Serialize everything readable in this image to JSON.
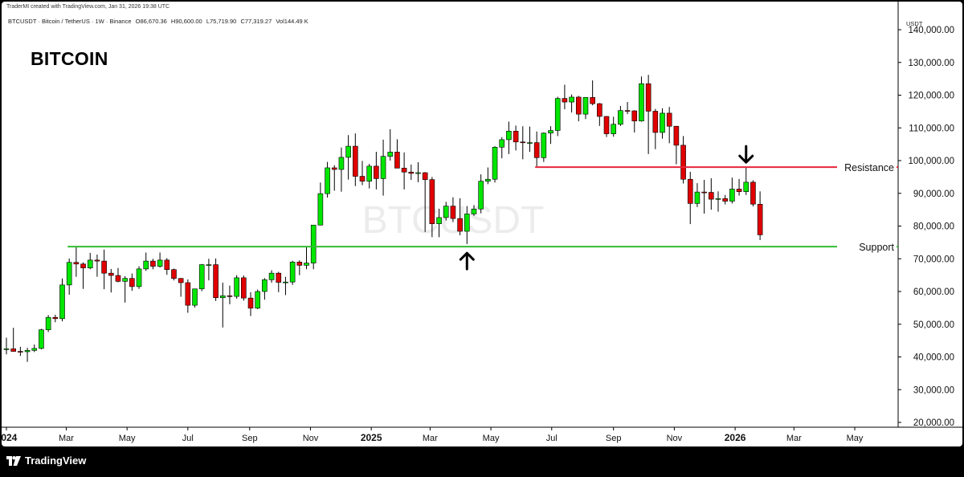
{
  "header": {
    "credit": "TraderMI created with TradingView.com, Jan 31, 2026 19:38 UTC",
    "symbol_line": "BTCUSDT · Bitcoin / TetherUS · 1W · Binance",
    "ohlc": {
      "o": "O86,670.36",
      "h": "H90,600.00",
      "l": "L75,719.90",
      "c": "C77,319.27",
      "vol": "Vol144.49 K"
    }
  },
  "title": "BITCOIN",
  "watermark": "BTCUSDT",
  "footer": {
    "brand": "TradingView",
    "logo_icon": "tradingview-logo-icon"
  },
  "colors": {
    "up": "#00e600",
    "down": "#e00000",
    "support": "#33bb33",
    "resistance": "#e8263a",
    "arrow": "#000000"
  },
  "chart_data": {
    "type": "candlestick",
    "unit": "USDT",
    "ylim": [
      20000,
      140000
    ],
    "y_ticks": [
      "140,000.00",
      "130,000.00",
      "120,000.00",
      "110,000.00",
      "100,000.00",
      "90,000.00",
      "80,000.00",
      "70,000.00",
      "60,000.00",
      "50,000.00",
      "40,000.00",
      "30,000.00",
      "20,000.00"
    ],
    "x_ticks": [
      {
        "label": "2024",
        "date": "2024-01-01"
      },
      {
        "label": "Mar",
        "date": "2024-03-01"
      },
      {
        "label": "May",
        "date": "2024-05-01"
      },
      {
        "label": "Jul",
        "date": "2024-07-01"
      },
      {
        "label": "Sep",
        "date": "2024-09-01"
      },
      {
        "label": "Nov",
        "date": "2024-11-01"
      },
      {
        "label": "2025",
        "date": "2025-01-01"
      },
      {
        "label": "Mar",
        "date": "2025-03-01"
      },
      {
        "label": "May",
        "date": "2025-05-01"
      },
      {
        "label": "Jul",
        "date": "2025-07-01"
      },
      {
        "label": "Sep",
        "date": "2025-09-01"
      },
      {
        "label": "Nov",
        "date": "2025-11-01"
      },
      {
        "label": "2026",
        "date": "2026-01-01"
      },
      {
        "label": "Mar",
        "date": "2026-03-01"
      },
      {
        "label": "May",
        "date": "2026-05-01"
      }
    ],
    "candles": [
      {
        "d": "2024-01-01",
        "o": 42300,
        "h": 45900,
        "l": 40800,
        "c": 42500
      },
      {
        "d": "2024-01-08",
        "o": 42500,
        "h": 48900,
        "l": 41600,
        "c": 41700
      },
      {
        "d": "2024-01-15",
        "o": 41700,
        "h": 43100,
        "l": 40300,
        "c": 41600
      },
      {
        "d": "2024-01-22",
        "o": 41600,
        "h": 42800,
        "l": 38500,
        "c": 42000
      },
      {
        "d": "2024-01-29",
        "o": 42000,
        "h": 43800,
        "l": 41500,
        "c": 42600
      },
      {
        "d": "2024-02-05",
        "o": 42600,
        "h": 48600,
        "l": 42300,
        "c": 48300
      },
      {
        "d": "2024-02-12",
        "o": 48300,
        "h": 52800,
        "l": 47600,
        "c": 52100
      },
      {
        "d": "2024-02-19",
        "o": 52100,
        "h": 52900,
        "l": 50600,
        "c": 51700
      },
      {
        "d": "2024-02-26",
        "o": 51700,
        "h": 64000,
        "l": 50900,
        "c": 62000
      },
      {
        "d": "2024-03-04",
        "o": 62000,
        "h": 70100,
        "l": 59000,
        "c": 68900
      },
      {
        "d": "2024-03-11",
        "o": 68900,
        "h": 73800,
        "l": 64500,
        "c": 68400
      },
      {
        "d": "2024-03-18",
        "o": 68400,
        "h": 68900,
        "l": 60800,
        "c": 67200
      },
      {
        "d": "2024-03-25",
        "o": 67200,
        "h": 71800,
        "l": 66800,
        "c": 69600
      },
      {
        "d": "2024-04-01",
        "o": 69600,
        "h": 71300,
        "l": 64500,
        "c": 69300
      },
      {
        "d": "2024-04-08",
        "o": 69300,
        "h": 72800,
        "l": 60700,
        "c": 65600
      },
      {
        "d": "2024-04-15",
        "o": 65600,
        "h": 66900,
        "l": 59700,
        "c": 64900
      },
      {
        "d": "2024-04-22",
        "o": 64900,
        "h": 67200,
        "l": 62800,
        "c": 63100
      },
      {
        "d": "2024-04-29",
        "o": 63100,
        "h": 64700,
        "l": 56600,
        "c": 64000
      },
      {
        "d": "2024-05-06",
        "o": 64000,
        "h": 65500,
        "l": 60200,
        "c": 61500
      },
      {
        "d": "2024-05-13",
        "o": 61500,
        "h": 67700,
        "l": 60800,
        "c": 66900
      },
      {
        "d": "2024-05-20",
        "o": 66900,
        "h": 71900,
        "l": 66300,
        "c": 69300
      },
      {
        "d": "2024-05-27",
        "o": 69300,
        "h": 70000,
        "l": 66800,
        "c": 67700
      },
      {
        "d": "2024-06-03",
        "o": 67700,
        "h": 71900,
        "l": 67300,
        "c": 69600
      },
      {
        "d": "2024-06-10",
        "o": 69600,
        "h": 70200,
        "l": 65100,
        "c": 66700
      },
      {
        "d": "2024-06-17",
        "o": 66700,
        "h": 67000,
        "l": 63400,
        "c": 64000
      },
      {
        "d": "2024-06-24",
        "o": 64000,
        "h": 64100,
        "l": 58400,
        "c": 62700
      },
      {
        "d": "2024-07-01",
        "o": 62700,
        "h": 63700,
        "l": 53500,
        "c": 55800
      },
      {
        "d": "2024-07-08",
        "o": 55800,
        "h": 60200,
        "l": 55100,
        "c": 60800
      },
      {
        "d": "2024-07-15",
        "o": 60800,
        "h": 68400,
        "l": 60100,
        "c": 68200
      },
      {
        "d": "2024-07-22",
        "o": 68200,
        "h": 70000,
        "l": 63400,
        "c": 68200
      },
      {
        "d": "2024-07-29",
        "o": 68200,
        "h": 70100,
        "l": 57100,
        "c": 58100
      },
      {
        "d": "2024-08-05",
        "o": 58100,
        "h": 62700,
        "l": 49000,
        "c": 58700
      },
      {
        "d": "2024-08-12",
        "o": 58700,
        "h": 61800,
        "l": 56100,
        "c": 58500
      },
      {
        "d": "2024-08-19",
        "o": 58500,
        "h": 65000,
        "l": 57800,
        "c": 64200
      },
      {
        "d": "2024-08-26",
        "o": 64200,
        "h": 64900,
        "l": 57200,
        "c": 58000
      },
      {
        "d": "2024-09-02",
        "o": 58000,
        "h": 59800,
        "l": 52500,
        "c": 54900
      },
      {
        "d": "2024-09-09",
        "o": 54900,
        "h": 60600,
        "l": 54600,
        "c": 60000
      },
      {
        "d": "2024-09-16",
        "o": 60000,
        "h": 64100,
        "l": 57500,
        "c": 63600
      },
      {
        "d": "2024-09-23",
        "o": 63600,
        "h": 66500,
        "l": 62700,
        "c": 65600
      },
      {
        "d": "2024-09-30",
        "o": 65600,
        "h": 66000,
        "l": 59800,
        "c": 62800
      },
      {
        "d": "2024-10-07",
        "o": 62800,
        "h": 64500,
        "l": 58900,
        "c": 62900
      },
      {
        "d": "2024-10-14",
        "o": 62900,
        "h": 69400,
        "l": 62000,
        "c": 69000
      },
      {
        "d": "2024-10-21",
        "o": 69000,
        "h": 69500,
        "l": 65000,
        "c": 68000
      },
      {
        "d": "2024-10-28",
        "o": 68000,
        "h": 73600,
        "l": 66800,
        "c": 68700
      },
      {
        "d": "2024-11-04",
        "o": 68700,
        "h": 80300,
        "l": 66800,
        "c": 80300
      },
      {
        "d": "2024-11-11",
        "o": 80300,
        "h": 93300,
        "l": 80200,
        "c": 89900
      },
      {
        "d": "2024-11-18",
        "o": 89900,
        "h": 99600,
        "l": 88700,
        "c": 97800
      },
      {
        "d": "2024-11-25",
        "o": 97800,
        "h": 98600,
        "l": 90800,
        "c": 97300
      },
      {
        "d": "2024-12-02",
        "o": 97300,
        "h": 104000,
        "l": 90500,
        "c": 101000
      },
      {
        "d": "2024-12-09",
        "o": 101000,
        "h": 107800,
        "l": 94200,
        "c": 104400
      },
      {
        "d": "2024-12-16",
        "o": 104400,
        "h": 108300,
        "l": 92200,
        "c": 95200
      },
      {
        "d": "2024-12-23",
        "o": 95200,
        "h": 99900,
        "l": 92500,
        "c": 93700
      },
      {
        "d": "2024-12-30",
        "o": 93700,
        "h": 99000,
        "l": 91500,
        "c": 98300
      },
      {
        "d": "2025-01-06",
        "o": 98300,
        "h": 102700,
        "l": 91200,
        "c": 94500
      },
      {
        "d": "2025-01-13",
        "o": 94500,
        "h": 106400,
        "l": 89300,
        "c": 101300
      },
      {
        "d": "2025-01-20",
        "o": 101300,
        "h": 109600,
        "l": 100000,
        "c": 102600
      },
      {
        "d": "2025-01-27",
        "o": 102600,
        "h": 106500,
        "l": 97800,
        "c": 97700
      },
      {
        "d": "2025-02-03",
        "o": 97700,
        "h": 102500,
        "l": 91200,
        "c": 96500
      },
      {
        "d": "2025-02-10",
        "o": 96500,
        "h": 98800,
        "l": 94100,
        "c": 96100
      },
      {
        "d": "2025-02-17",
        "o": 96100,
        "h": 99500,
        "l": 93400,
        "c": 96300
      },
      {
        "d": "2025-02-24",
        "o": 96300,
        "h": 96500,
        "l": 78200,
        "c": 94200
      },
      {
        "d": "2025-03-03",
        "o": 94200,
        "h": 95000,
        "l": 76600,
        "c": 80700
      },
      {
        "d": "2025-03-10",
        "o": 80700,
        "h": 85300,
        "l": 76600,
        "c": 82600
      },
      {
        "d": "2025-03-17",
        "o": 82600,
        "h": 87400,
        "l": 81700,
        "c": 86100
      },
      {
        "d": "2025-03-24",
        "o": 86100,
        "h": 88800,
        "l": 81200,
        "c": 82300
      },
      {
        "d": "2025-03-31",
        "o": 82300,
        "h": 88500,
        "l": 77200,
        "c": 78400
      },
      {
        "d": "2025-04-07",
        "o": 78400,
        "h": 86100,
        "l": 74500,
        "c": 83700
      },
      {
        "d": "2025-04-14",
        "o": 83700,
        "h": 86400,
        "l": 83100,
        "c": 85200
      },
      {
        "d": "2025-04-21",
        "o": 85200,
        "h": 95800,
        "l": 83900,
        "c": 93700
      },
      {
        "d": "2025-04-28",
        "o": 93700,
        "h": 97900,
        "l": 92800,
        "c": 94300
      },
      {
        "d": "2025-05-05",
        "o": 94300,
        "h": 104400,
        "l": 93300,
        "c": 104100
      },
      {
        "d": "2025-05-12",
        "o": 104100,
        "h": 107100,
        "l": 100700,
        "c": 106400
      },
      {
        "d": "2025-05-19",
        "o": 106400,
        "h": 111900,
        "l": 102000,
        "c": 109000
      },
      {
        "d": "2025-05-26",
        "o": 109000,
        "h": 110700,
        "l": 103100,
        "c": 105700
      },
      {
        "d": "2025-06-02",
        "o": 105700,
        "h": 110500,
        "l": 100400,
        "c": 105500
      },
      {
        "d": "2025-06-09",
        "o": 105500,
        "h": 110400,
        "l": 102700,
        "c": 105500
      },
      {
        "d": "2025-06-16",
        "o": 105500,
        "h": 108900,
        "l": 98200,
        "c": 100900
      },
      {
        "d": "2025-06-23",
        "o": 100900,
        "h": 108600,
        "l": 99600,
        "c": 108400
      },
      {
        "d": "2025-06-30",
        "o": 108400,
        "h": 110500,
        "l": 105100,
        "c": 109200
      },
      {
        "d": "2025-07-07",
        "o": 109200,
        "h": 119500,
        "l": 107500,
        "c": 119000
      },
      {
        "d": "2025-07-14",
        "o": 119000,
        "h": 123200,
        "l": 115700,
        "c": 117900
      },
      {
        "d": "2025-07-21",
        "o": 117900,
        "h": 120200,
        "l": 114700,
        "c": 119400
      },
      {
        "d": "2025-07-28",
        "o": 119400,
        "h": 119800,
        "l": 112000,
        "c": 114200
      },
      {
        "d": "2025-08-04",
        "o": 114200,
        "h": 119300,
        "l": 112700,
        "c": 119300
      },
      {
        "d": "2025-08-11",
        "o": 119300,
        "h": 124500,
        "l": 116900,
        "c": 117400
      },
      {
        "d": "2025-08-18",
        "o": 117400,
        "h": 117600,
        "l": 110600,
        "c": 113500
      },
      {
        "d": "2025-08-25",
        "o": 113500,
        "h": 113600,
        "l": 107200,
        "c": 108200
      },
      {
        "d": "2025-09-01",
        "o": 108200,
        "h": 113400,
        "l": 107300,
        "c": 111100
      },
      {
        "d": "2025-09-08",
        "o": 111100,
        "h": 116700,
        "l": 110600,
        "c": 115300
      },
      {
        "d": "2025-09-15",
        "o": 115300,
        "h": 117900,
        "l": 114200,
        "c": 115200
      },
      {
        "d": "2025-09-22",
        "o": 115200,
        "h": 115400,
        "l": 108600,
        "c": 112100
      },
      {
        "d": "2025-09-29",
        "o": 112100,
        "h": 125700,
        "l": 111900,
        "c": 123500
      },
      {
        "d": "2025-10-06",
        "o": 123500,
        "h": 126200,
        "l": 102000,
        "c": 115100
      },
      {
        "d": "2025-10-13",
        "o": 115100,
        "h": 115800,
        "l": 103500,
        "c": 108600
      },
      {
        "d": "2025-10-20",
        "o": 108600,
        "h": 116000,
        "l": 106700,
        "c": 114500
      },
      {
        "d": "2025-10-27",
        "o": 114500,
        "h": 116400,
        "l": 105300,
        "c": 110500
      },
      {
        "d": "2025-11-03",
        "o": 110500,
        "h": 110600,
        "l": 98900,
        "c": 104700
      },
      {
        "d": "2025-11-10",
        "o": 104700,
        "h": 107500,
        "l": 93000,
        "c": 94300
      },
      {
        "d": "2025-11-17",
        "o": 94300,
        "h": 96600,
        "l": 80600,
        "c": 86900
      },
      {
        "d": "2025-11-24",
        "o": 86900,
        "h": 93100,
        "l": 85800,
        "c": 90400
      },
      {
        "d": "2025-12-01",
        "o": 90400,
        "h": 94100,
        "l": 83800,
        "c": 90300
      },
      {
        "d": "2025-12-08",
        "o": 90300,
        "h": 94600,
        "l": 85000,
        "c": 88200
      },
      {
        "d": "2025-12-15",
        "o": 88200,
        "h": 90600,
        "l": 84400,
        "c": 88400
      },
      {
        "d": "2025-12-22",
        "o": 88400,
        "h": 89500,
        "l": 86600,
        "c": 87600
      },
      {
        "d": "2025-12-29",
        "o": 87600,
        "h": 94800,
        "l": 86900,
        "c": 91300
      },
      {
        "d": "2026-01-05",
        "o": 91300,
        "h": 94400,
        "l": 89300,
        "c": 90500
      },
      {
        "d": "2026-01-12",
        "o": 90500,
        "h": 97900,
        "l": 89500,
        "c": 93400
      },
      {
        "d": "2026-01-19",
        "o": 93400,
        "h": 94000,
        "l": 86000,
        "c": 86700
      },
      {
        "d": "2026-01-26",
        "o": 86670,
        "h": 90600,
        "l": 75720,
        "c": 77320
      }
    ],
    "lines": [
      {
        "name": "Support",
        "value": 73700,
        "from": "2024-03-04",
        "color": "#33bb33"
      },
      {
        "name": "Resistance",
        "value": 98000,
        "from": "2025-06-16",
        "color": "#e8263a"
      }
    ],
    "arrows": [
      {
        "direction": "up",
        "date": "2025-04-07",
        "value": 73700
      },
      {
        "direction": "down",
        "date": "2026-01-12",
        "value": 98000
      }
    ]
  }
}
